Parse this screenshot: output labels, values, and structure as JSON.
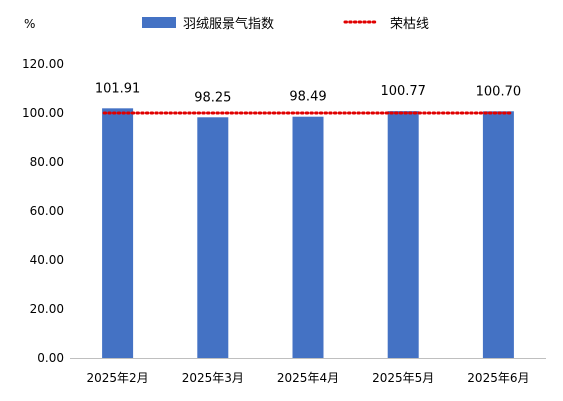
{
  "chart_data": {
    "type": "bar",
    "unit": "%",
    "categories": [
      "2025年2月",
      "2025年3月",
      "2025年4月",
      "2025年5月",
      "2025年6月"
    ],
    "series": [
      {
        "name": "羽绒服景气指数",
        "type": "bar",
        "values": [
          101.91,
          98.25,
          98.49,
          100.77,
          100.7
        ],
        "labels": [
          "101.91",
          "98.25",
          "98.49",
          "100.77",
          "100.70"
        ]
      },
      {
        "name": "荣枯线",
        "type": "line",
        "style": "dotted",
        "values": [
          100,
          100,
          100,
          100,
          100
        ]
      }
    ],
    "ylim": [
      0,
      120
    ],
    "yticks": [
      "0.00",
      "20.00",
      "40.00",
      "60.00",
      "80.00",
      "100.00",
      "120.00"
    ],
    "legend_position": "top",
    "grid": false
  },
  "colors": {
    "bar": "#4472C4",
    "line": "#E00000",
    "axis": "#BFBFBF"
  }
}
